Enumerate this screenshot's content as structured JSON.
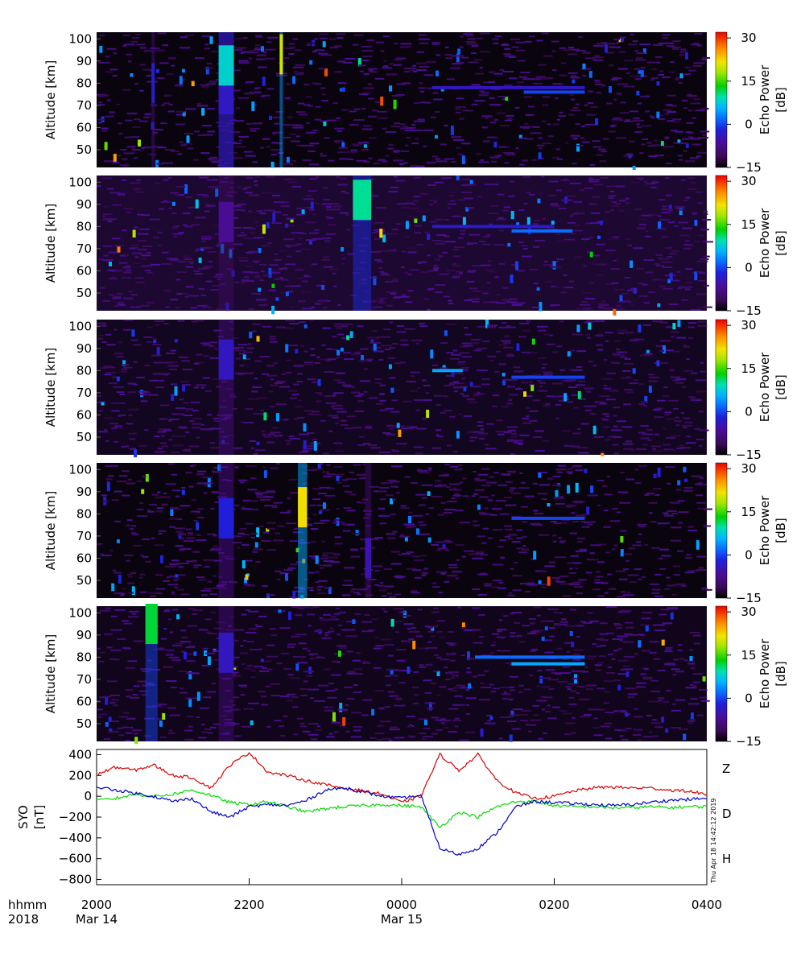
{
  "chart_data": [
    {
      "type": "heatmap",
      "ylabel": "Altitude [km]",
      "ylim": [
        42,
        103
      ],
      "y_ticks": [
        "50",
        "60",
        "70",
        "80",
        "90",
        "100"
      ],
      "colorbar": {
        "label_line1": "Echo Power",
        "label_line2": "[dB]",
        "range": [
          -15,
          32
        ],
        "ticks": [
          "30",
          "15",
          "0",
          "−15"
        ]
      },
      "layers": [
        {
          "t0": 0.09,
          "t1": 0.095,
          "alt": 80,
          "db": -3
        },
        {
          "t0": 0.2,
          "t1": 0.225,
          "alt": 75,
          "db": -5
        },
        {
          "t0": 0.2,
          "t1": 0.225,
          "alt": 88,
          "db": 8
        },
        {
          "t0": 0.3,
          "t1": 0.305,
          "alt": 93,
          "db": 20
        },
        {
          "t0": 0.55,
          "t1": 0.8,
          "alt": 78,
          "db": -4
        },
        {
          "t0": 0.7,
          "t1": 0.8,
          "alt": 76,
          "db": 0
        }
      ]
    },
    {
      "type": "heatmap",
      "ylabel": "Altitude [km]",
      "ylim": [
        42,
        103
      ],
      "y_ticks": [
        "50",
        "60",
        "70",
        "80",
        "90",
        "100"
      ],
      "colorbar": {
        "label_line1": "Echo Power",
        "label_line2": "[dB]",
        "range": [
          -15,
          32
        ],
        "ticks": [
          "30",
          "15",
          "0",
          "−15"
        ]
      },
      "layers": [
        {
          "t0": 0.2,
          "t1": 0.225,
          "alt": 82,
          "db": -7
        },
        {
          "t0": 0.42,
          "t1": 0.45,
          "alt": 92,
          "db": 10
        },
        {
          "t0": 0.55,
          "t1": 0.75,
          "alt": 80,
          "db": -3
        },
        {
          "t0": 0.68,
          "t1": 0.78,
          "alt": 78,
          "db": 2
        }
      ]
    },
    {
      "type": "heatmap",
      "ylabel": "Altitude [km]",
      "ylim": [
        42,
        103
      ],
      "y_ticks": [
        "50",
        "60",
        "70",
        "80",
        "90",
        "100"
      ],
      "colorbar": {
        "label_line1": "Echo Power",
        "label_line2": "[dB]",
        "range": [
          -15,
          32
        ],
        "ticks": [
          "30",
          "15",
          "0",
          "−15"
        ]
      },
      "layers": [
        {
          "t0": 0.2,
          "t1": 0.225,
          "alt": 85,
          "db": -4
        },
        {
          "t0": 0.55,
          "t1": 0.6,
          "alt": 80,
          "db": 5
        },
        {
          "t0": 0.68,
          "t1": 0.8,
          "alt": 77,
          "db": 0
        }
      ]
    },
    {
      "type": "heatmap",
      "ylabel": "Altitude [km]",
      "ylim": [
        42,
        103
      ],
      "y_ticks": [
        "50",
        "60",
        "70",
        "80",
        "90",
        "100"
      ],
      "colorbar": {
        "label_line1": "Echo Power",
        "label_line2": "[dB]",
        "range": [
          -15,
          32
        ],
        "ticks": [
          "30",
          "15",
          "0",
          "−15"
        ]
      },
      "layers": [
        {
          "t0": 0.2,
          "t1": 0.225,
          "alt": 78,
          "db": -2
        },
        {
          "t0": 0.33,
          "t1": 0.345,
          "alt": 83,
          "db": 22
        },
        {
          "t0": 0.44,
          "t1": 0.45,
          "alt": 60,
          "db": -5
        },
        {
          "t0": 0.68,
          "t1": 0.8,
          "alt": 78,
          "db": 0
        }
      ]
    },
    {
      "type": "heatmap",
      "ylabel": "Altitude [km]",
      "ylim": [
        42,
        103
      ],
      "y_ticks": [
        "50",
        "60",
        "70",
        "80",
        "90",
        "100"
      ],
      "colorbar": {
        "label_line1": "Echo Power",
        "label_line2": "[dB]",
        "range": [
          -15,
          32
        ],
        "ticks": [
          "30",
          "15",
          "0",
          "−15"
        ]
      },
      "layers": [
        {
          "t0": 0.08,
          "t1": 0.1,
          "alt": 95,
          "db": 12
        },
        {
          "t0": 0.2,
          "t1": 0.225,
          "alt": 82,
          "db": -4
        },
        {
          "t0": 0.62,
          "t1": 0.8,
          "alt": 80,
          "db": 2
        },
        {
          "t0": 0.68,
          "t1": 0.8,
          "alt": 77,
          "db": 5
        }
      ]
    },
    {
      "type": "line",
      "ylabel_line1": "SYO",
      "ylabel_line2": "[nT]",
      "ylim": [
        -850,
        450
      ],
      "y_ticks": [
        {
          "value": 400,
          "label": "400"
        },
        {
          "value": 200,
          "label": "200"
        },
        {
          "value": 0,
          "label": "0"
        },
        {
          "value": -200,
          "label": "−200"
        },
        {
          "value": -400,
          "label": "−400"
        },
        {
          "value": -600,
          "label": "−600"
        },
        {
          "value": -800,
          "label": "−800"
        }
      ],
      "x": [
        0,
        0.25,
        0.5,
        0.75,
        1,
        1.25,
        1.5,
        1.75,
        2,
        2.25,
        2.5,
        2.75,
        3,
        3.25,
        3.5,
        3.75,
        4,
        4.25,
        4.5,
        4.75,
        5,
        5.25,
        5.5,
        5.75,
        6,
        6.25,
        6.5,
        6.75,
        7,
        7.25,
        7.5,
        7.75,
        8
      ],
      "series": [
        {
          "name": "Z",
          "color": "#dd0000",
          "values": [
            210,
            280,
            250,
            300,
            200,
            180,
            80,
            300,
            420,
            230,
            200,
            150,
            110,
            80,
            50,
            20,
            -60,
            0,
            400,
            250,
            400,
            150,
            30,
            -20,
            0,
            50,
            80,
            90,
            80,
            80,
            60,
            50,
            20
          ]
        },
        {
          "name": "D",
          "color": "#00dd00",
          "values": [
            -40,
            -20,
            20,
            0,
            20,
            60,
            10,
            -60,
            -80,
            -50,
            -100,
            -150,
            -120,
            -100,
            -90,
            -80,
            -90,
            -100,
            -300,
            -150,
            -200,
            -100,
            -50,
            -50,
            -90,
            -100,
            -100,
            -110,
            -110,
            -100,
            -110,
            -100,
            -100
          ]
        },
        {
          "name": "H",
          "color": "#0000cc",
          "values": [
            90,
            60,
            30,
            0,
            -50,
            -20,
            -150,
            -200,
            -100,
            -80,
            -90,
            -40,
            60,
            80,
            40,
            0,
            -20,
            10,
            -500,
            -560,
            -500,
            -350,
            -100,
            -50,
            -60,
            -70,
            -80,
            -90,
            -80,
            -60,
            -40,
            -30,
            -20
          ]
        }
      ],
      "stamp": "Thu Apr 18 14:42:12 2019"
    }
  ],
  "time_axis": {
    "row1_left_label": "hhmm",
    "row2_left_label": "2018",
    "ticks": [
      {
        "hour_offset": 0,
        "label": "2000",
        "date": "Mar 14"
      },
      {
        "hour_offset": 2,
        "label": "2200",
        "date": ""
      },
      {
        "hour_offset": 4,
        "label": "0000",
        "date": "Mar 15"
      },
      {
        "hour_offset": 6,
        "label": "0200",
        "date": ""
      },
      {
        "hour_offset": 8,
        "label": "0400",
        "date": ""
      }
    ]
  }
}
